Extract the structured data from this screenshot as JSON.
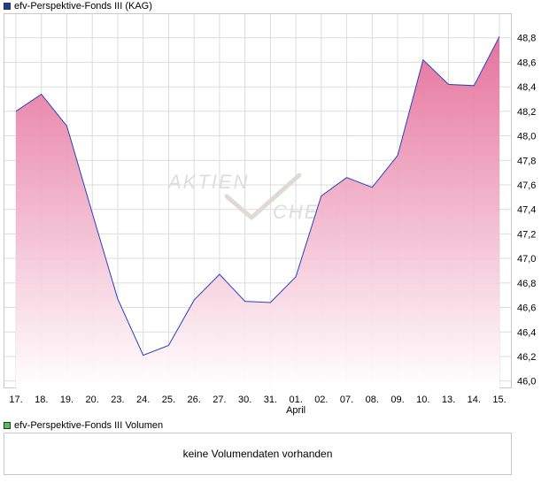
{
  "legend": {
    "price_label": "efv-Perspektive-Fonds III (KAG)",
    "price_color": "#1a3f99",
    "volume_label": "efv-Perspektive-Fonds III Volumen",
    "volume_color": "#55c055"
  },
  "volume_panel": {
    "message": "keine Volumendaten vorhanden"
  },
  "watermark": {
    "text": "AKTIEN CHECK"
  },
  "chart_data": {
    "type": "area",
    "title": "",
    "xlabel": "",
    "ylabel": "",
    "x": [
      "17.",
      "18.",
      "19.",
      "20.",
      "23.",
      "24.",
      "25.",
      "26.",
      "27.",
      "30.",
      "31.",
      "01.",
      "02.",
      "07.",
      "08.",
      "09.",
      "10.",
      "13.",
      "14.",
      "15."
    ],
    "x_sublabels": [
      {
        "index": 11,
        "text": "April"
      }
    ],
    "series": [
      {
        "name": "efv-Perspektive-Fonds III (KAG)",
        "values": [
          48.2,
          48.34,
          48.08,
          47.37,
          46.67,
          46.21,
          46.29,
          46.66,
          46.87,
          46.65,
          46.64,
          46.85,
          47.51,
          47.66,
          47.58,
          47.84,
          48.62,
          48.42,
          48.41,
          48.81
        ]
      }
    ],
    "ylim": [
      45.94,
      49.0
    ],
    "yticks": [
      46.0,
      46.2,
      46.4,
      46.6,
      46.8,
      47.0,
      47.2,
      47.4,
      47.6,
      47.8,
      48.0,
      48.2,
      48.4,
      48.6,
      48.8
    ],
    "grid": true,
    "legend_position": "top-left",
    "line_color": "#2a3fc0",
    "fill_top_color": "#e46c98",
    "fill_bottom_color": "#ffffff",
    "grid_color": "#dcdcdc"
  }
}
